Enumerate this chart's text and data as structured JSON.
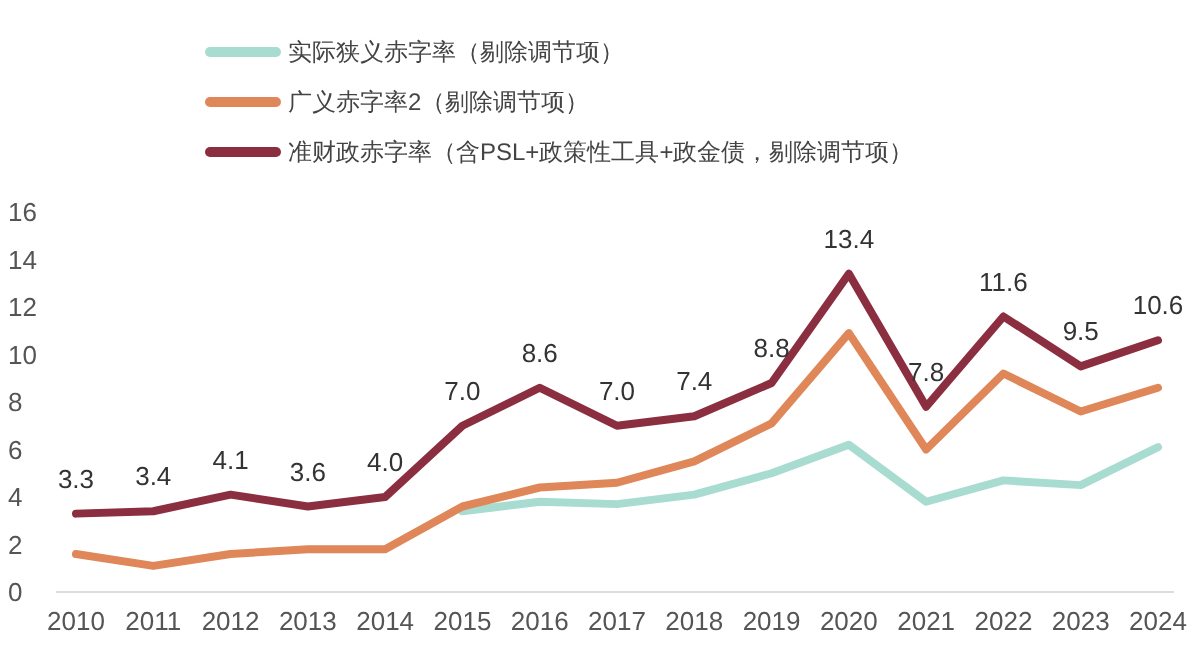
{
  "chart_data": {
    "type": "line",
    "categories": [
      "2010",
      "2011",
      "2012",
      "2013",
      "2014",
      "2015",
      "2016",
      "2017",
      "2018",
      "2019",
      "2020",
      "2021",
      "2022",
      "2023",
      "2024"
    ],
    "series": [
      {
        "name": "实际狭义赤字率（剔除调节项）",
        "color": "#a8dcd1",
        "values": [
          null,
          null,
          null,
          null,
          null,
          3.4,
          3.8,
          3.7,
          4.1,
          5.0,
          6.2,
          3.8,
          4.7,
          4.5,
          6.1
        ]
      },
      {
        "name": "广义赤字率2（剔除调节项）",
        "color": "#e0875a",
        "values": [
          1.6,
          1.1,
          1.6,
          1.8,
          1.8,
          3.6,
          4.4,
          4.6,
          5.5,
          7.1,
          10.9,
          6.0,
          9.2,
          7.6,
          8.6
        ]
      },
      {
        "name": "准财政赤字率（含PSL+政策性工具+政金债，剔除调节项）",
        "color": "#8b2e3f",
        "values": [
          3.3,
          3.4,
          4.1,
          3.6,
          4.0,
          7.0,
          8.6,
          7.0,
          7.4,
          8.8,
          13.4,
          7.8,
          11.6,
          9.5,
          10.6
        ],
        "value_labels": [
          "3.3",
          "3.4",
          "4.1",
          "3.6",
          "4.0",
          "7.0",
          "8.6",
          "7.0",
          "7.4",
          "8.8",
          "13.4",
          "7.8",
          "11.6",
          "9.5",
          "10.6"
        ]
      }
    ],
    "ylim": [
      0,
      16
    ],
    "yticks": [
      0,
      2,
      4,
      6,
      8,
      10,
      12,
      14,
      16
    ],
    "grid": false,
    "legend": "top",
    "marker": "none",
    "line_style": "solid"
  }
}
